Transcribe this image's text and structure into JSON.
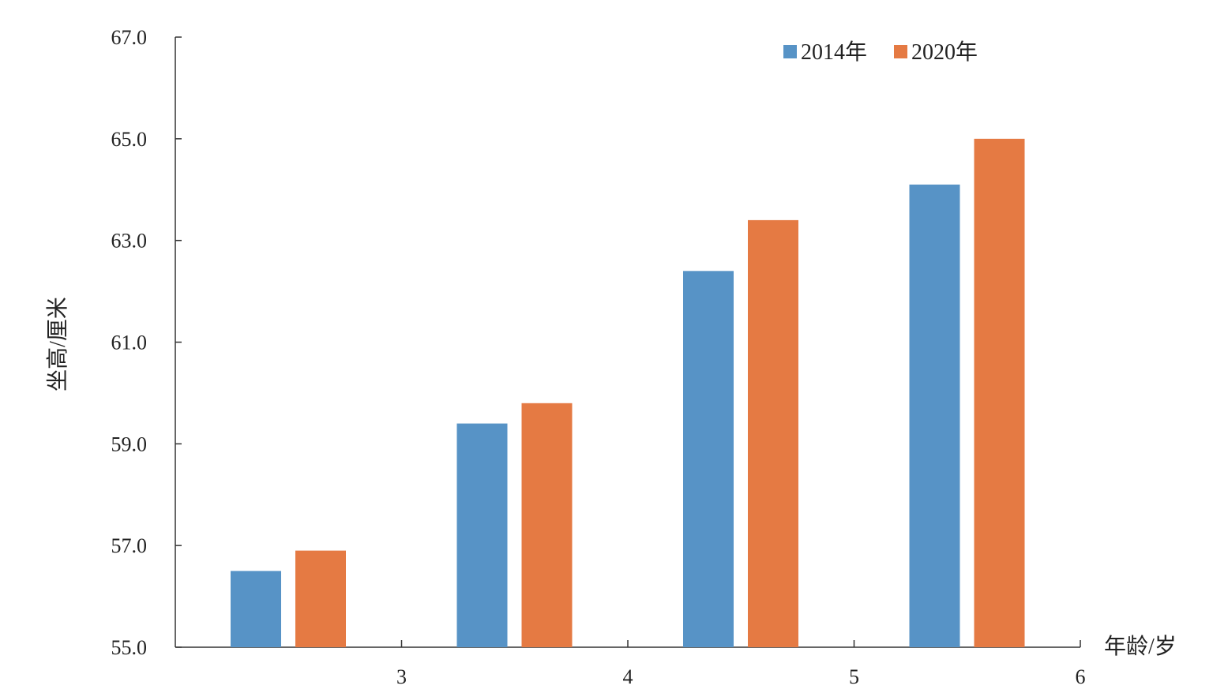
{
  "chart_data": {
    "type": "bar",
    "categories": [
      "",
      "",
      "",
      ""
    ],
    "series": [
      {
        "name": "2014年",
        "color": "#5793C6",
        "values": [
          56.5,
          59.4,
          62.4,
          64.1
        ]
      },
      {
        "name": "2020年",
        "color": "#E57A43",
        "values": [
          56.9,
          59.8,
          63.4,
          65.0
        ]
      }
    ],
    "ylim": [
      55.0,
      67.0
    ],
    "yticks": [
      "55.0",
      "57.0",
      "59.0",
      "61.0",
      "63.0",
      "65.0",
      "67.0"
    ],
    "xticks": [
      "3",
      "4",
      "5",
      "6"
    ],
    "xlabel": "年龄/岁",
    "ylabel": "坐高/厘米",
    "legend_position": "top-right",
    "grid": false
  }
}
